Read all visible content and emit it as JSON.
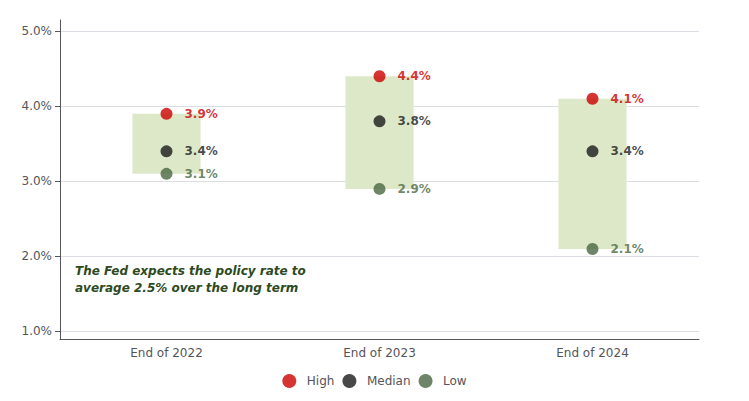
{
  "chart_data": {
    "type": "scatter",
    "categories": [
      "End of 2022",
      "End of 2023",
      "End of 2024"
    ],
    "series": [
      {
        "name": "High",
        "color": "#cc0000",
        "values": [
          3.9,
          4.4,
          4.1
        ],
        "value_labels": [
          "3.9%",
          "4.4%",
          "4.1%"
        ]
      },
      {
        "name": "Median",
        "color": "#1a1a1a",
        "values": [
          3.4,
          3.8,
          3.4
        ],
        "value_labels": [
          "3.4%",
          "3.8%",
          "3.4%"
        ]
      },
      {
        "name": "Low",
        "color": "#4a6741",
        "values": [
          3.1,
          2.9,
          2.1
        ],
        "value_labels": [
          "3.1%",
          "2.9%",
          "2.1%"
        ]
      }
    ],
    "boxes": {
      "color": "#dce8c8",
      "top": [
        3.9,
        4.4,
        4.1
      ],
      "bottom": [
        3.1,
        2.9,
        2.1
      ]
    },
    "ylim": [
      0.9,
      5.15
    ],
    "yticks": [
      {
        "value": 1.0,
        "label": "1.0%"
      },
      {
        "value": 2.0,
        "label": "2.0%"
      },
      {
        "value": 3.0,
        "label": "3.0%"
      },
      {
        "value": 4.0,
        "label": "4.0%"
      },
      {
        "value": 5.0,
        "label": "5.0%"
      }
    ],
    "annotations": [
      {
        "text": "The Fed expects the policy rate to\naverage 2.5% over the long term",
        "color": "#2d4a1e"
      }
    ],
    "data_labels": true,
    "grid": true,
    "legend": "bottom"
  }
}
